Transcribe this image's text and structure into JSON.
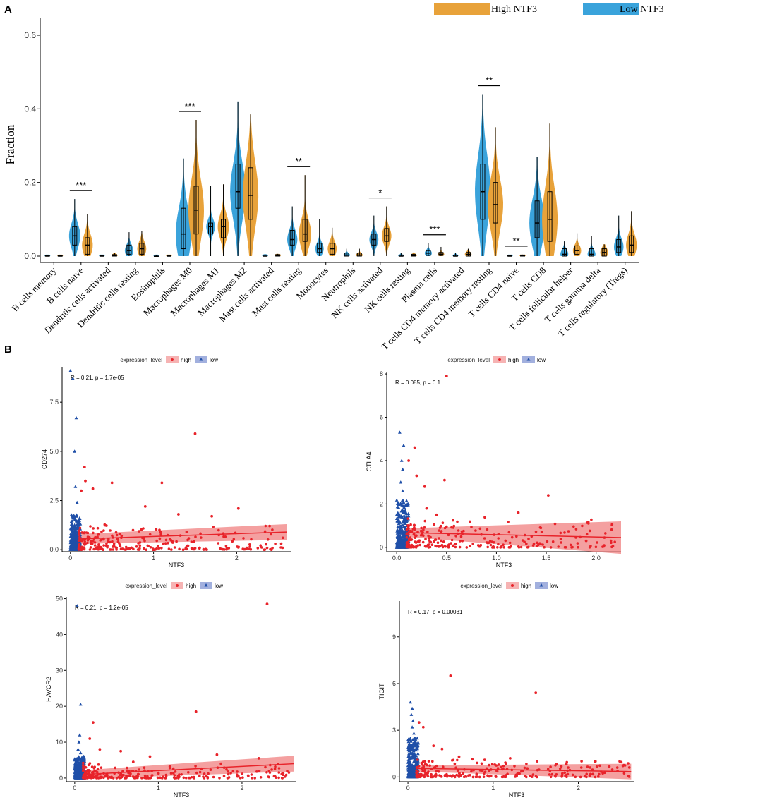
{
  "figure": {
    "panel_a_label": "A",
    "panel_b_label": "B"
  },
  "colors": {
    "high_violin": "#E8A23A",
    "low_violin": "#3AA3DB",
    "high_point": "#E8232A",
    "low_point": "#1F4FA8",
    "ci_band": "#F08080"
  },
  "chart_data": [
    {
      "type": "violin",
      "ylabel": "Fraction",
      "ylim": [
        0,
        0.65
      ],
      "yticks": [
        0.0,
        0.2,
        0.4,
        0.6
      ],
      "ytick_labels": [
        "0.0",
        "0.2",
        "0.4",
        "0.6"
      ],
      "legend": [
        "High NTF3",
        "Low NTF3"
      ],
      "categories": [
        "B cells memory",
        "B cells naive",
        "Dendritic cells activated",
        "Dendritic cells resting",
        "Eosinophils",
        "Macrophages M0",
        "Macrophages M1",
        "Macrophages M2",
        "Mast cells activated",
        "Mast cells resting",
        "Monocytes",
        "Neutrophils",
        "NK cells activated",
        "NK cells resting",
        "Plasma cells",
        "T cells CD4 memory activated",
        "T cells CD4 memory resting",
        "T cells CD4 naive",
        "T cells CD8",
        "T cells follicular helper",
        "T cells gamma delta",
        "T cells regulatory (Tregs)"
      ],
      "significance": [
        "",
        "***",
        "",
        "",
        "",
        "***",
        "",
        "",
        "",
        "**",
        "",
        "",
        "*",
        "",
        "***",
        "",
        "**",
        "**",
        "",
        "",
        "",
        ""
      ],
      "series": [
        {
          "name": "Low NTF3",
          "q1": [
            0,
            0.03,
            0,
            0.005,
            0,
            0.02,
            0.06,
            0.13,
            0,
            0.03,
            0.01,
            0,
            0.03,
            0,
            0.002,
            0,
            0.1,
            0,
            0.05,
            0,
            0,
            0.01
          ],
          "median": [
            0,
            0.055,
            0,
            0.015,
            0,
            0.06,
            0.08,
            0.175,
            0,
            0.045,
            0.02,
            0.003,
            0.045,
            0,
            0.008,
            0,
            0.175,
            0,
            0.09,
            0.005,
            0.005,
            0.025
          ],
          "q3": [
            0.002,
            0.08,
            0.002,
            0.03,
            0,
            0.13,
            0.09,
            0.25,
            0.003,
            0.07,
            0.035,
            0.008,
            0.06,
            0.003,
            0.015,
            0.003,
            0.25,
            0.002,
            0.15,
            0.02,
            0.02,
            0.045
          ],
          "min": [
            0,
            0,
            0,
            0,
            0,
            0,
            0,
            0,
            0,
            0,
            0,
            0,
            0,
            0,
            0,
            0,
            0,
            0,
            0,
            0,
            0,
            0
          ],
          "max": [
            0.003,
            0.155,
            0.003,
            0.065,
            0.002,
            0.265,
            0.19,
            0.42,
            0.005,
            0.135,
            0.1,
            0.02,
            0.11,
            0.008,
            0.035,
            0.008,
            0.44,
            0.003,
            0.27,
            0.04,
            0.055,
            0.11
          ]
        },
        {
          "name": "High NTF3",
          "q1": [
            0,
            0.005,
            0,
            0.005,
            0,
            0.06,
            0.05,
            0.1,
            0,
            0.04,
            0.005,
            0,
            0.04,
            0,
            0.002,
            0,
            0.09,
            0,
            0.04,
            0.005,
            0,
            0.01
          ],
          "median": [
            0,
            0.03,
            0.002,
            0.02,
            0,
            0.125,
            0.08,
            0.165,
            0.002,
            0.06,
            0.02,
            0.003,
            0.055,
            0.002,
            0.005,
            0.005,
            0.14,
            0.001,
            0.1,
            0.015,
            0.01,
            0.03
          ],
          "q3": [
            0.002,
            0.05,
            0.004,
            0.035,
            0.002,
            0.19,
            0.1,
            0.24,
            0.004,
            0.1,
            0.035,
            0.008,
            0.075,
            0.005,
            0.01,
            0.01,
            0.2,
            0.003,
            0.175,
            0.028,
            0.02,
            0.055
          ],
          "min": [
            0,
            0,
            0,
            0,
            0,
            0,
            0,
            0,
            0,
            0,
            0,
            0,
            0,
            0,
            0,
            0,
            0,
            0,
            0,
            0,
            0,
            0
          ],
          "max": [
            0.003,
            0.115,
            0.008,
            0.068,
            0.003,
            0.37,
            0.195,
            0.385,
            0.006,
            0.22,
            0.077,
            0.02,
            0.135,
            0.01,
            0.025,
            0.02,
            0.35,
            0.004,
            0.36,
            0.062,
            0.032,
            0.122
          ]
        }
      ]
    },
    {
      "type": "scatter",
      "legend_title": "expression_level",
      "legend_items": [
        "high",
        "low"
      ],
      "xlabel": "NTF3",
      "ylabel": "CD274",
      "stat": "R = 0.21, p = 1.7e-05",
      "xlim": [
        -0.1,
        2.65
      ],
      "ylim": [
        -0.1,
        9.3
      ],
      "xticks": [
        0,
        1,
        2
      ],
      "xtick_labels": [
        "0",
        "1",
        "2"
      ],
      "yticks": [
        0,
        2.5,
        5,
        7.5
      ],
      "ytick_labels": [
        "0.0",
        "2.5",
        "5.0",
        "7.5"
      ],
      "fit": {
        "x0": 0.12,
        "y0": 0.55,
        "x1": 2.6,
        "y1": 0.9,
        "band0": 0.25,
        "band1": 0.4
      },
      "low_outliers": [
        [
          0.0,
          9.1
        ],
        [
          0.03,
          8.7
        ],
        [
          0.07,
          6.7
        ],
        [
          0.05,
          5.0
        ],
        [
          0.06,
          3.2
        ],
        [
          0.08,
          2.4
        ]
      ],
      "high_outliers": [
        [
          1.5,
          5.9
        ],
        [
          0.17,
          4.2
        ],
        [
          0.5,
          3.4
        ],
        [
          0.18,
          3.5
        ],
        [
          0.27,
          3.1
        ],
        [
          1.1,
          3.4
        ],
        [
          0.13,
          3.0
        ],
        [
          0.9,
          2.2
        ],
        [
          1.3,
          1.8
        ],
        [
          2.02,
          2.1
        ],
        [
          1.7,
          1.7
        ]
      ],
      "bulk": {
        "low_xmax": 0.12,
        "low_ymax": 1.8,
        "high_xmin": 0.1,
        "high_xmax": 2.6,
        "high_ymax": 1.5
      }
    },
    {
      "type": "scatter",
      "legend_title": "expression_level",
      "legend_items": [
        "high",
        "low"
      ],
      "xlabel": "NTF3",
      "ylabel": "CTLA4",
      "stat": "R = 0.085, p = 0.1",
      "xlim": [
        -0.1,
        2.25
      ],
      "ylim": [
        -0.2,
        8.1
      ],
      "xticks": [
        0,
        0.5,
        1,
        1.5,
        2
      ],
      "xtick_labels": [
        "0.0",
        "0.5",
        "1.0",
        "1.5",
        "2.0"
      ],
      "yticks": [
        0,
        2,
        4,
        6,
        8
      ],
      "ytick_labels": [
        "0",
        "2",
        "4",
        "6",
        "8"
      ],
      "fit": {
        "x0": 0.1,
        "y0": 0.68,
        "x1": 2.25,
        "y1": 0.45,
        "band0": 0.2,
        "band1": 0.75
      },
      "low_outliers": [
        [
          0.03,
          5.3
        ],
        [
          0.07,
          4.7
        ],
        [
          0.05,
          4.0
        ],
        [
          0.06,
          3.6
        ],
        [
          0.04,
          3.0
        ],
        [
          0.06,
          2.6
        ]
      ],
      "high_outliers": [
        [
          0.5,
          7.9
        ],
        [
          0.18,
          4.6
        ],
        [
          0.12,
          4.0
        ],
        [
          0.2,
          3.3
        ],
        [
          0.28,
          2.8
        ],
        [
          0.48,
          3.1
        ],
        [
          1.52,
          2.4
        ],
        [
          1.22,
          1.6
        ],
        [
          0.3,
          1.8
        ],
        [
          0.4,
          1.5
        ],
        [
          1.9,
          0.3
        ]
      ],
      "bulk": {
        "low_xmax": 0.12,
        "low_ymax": 2.2,
        "high_xmin": 0.1,
        "high_xmax": 2.2,
        "high_ymax": 1.5
      }
    },
    {
      "type": "scatter",
      "legend_title": "expression_level",
      "legend_items": [
        "high",
        "low"
      ],
      "xlabel": "NTF3",
      "ylabel": "HAVCR2",
      "stat": "R = 0.21, p = 1.2e-05",
      "xlim": [
        -0.1,
        2.65
      ],
      "ylim": [
        -1,
        50.5
      ],
      "xticks": [
        0,
        1,
        2
      ],
      "xtick_labels": [
        "0",
        "1",
        "2"
      ],
      "yticks": [
        0,
        10,
        20,
        30,
        40,
        50
      ],
      "ytick_labels": [
        "0",
        "10",
        "20",
        "30",
        "40",
        "50"
      ],
      "fit": {
        "x0": 0.1,
        "y0": 1.0,
        "x1": 2.62,
        "y1": 4.0,
        "band0": 1.2,
        "band1": 2.2
      },
      "low_outliers": [
        [
          0.03,
          48.0
        ],
        [
          0.07,
          20.5
        ],
        [
          0.06,
          12.0
        ],
        [
          0.05,
          10.0
        ],
        [
          0.04,
          8.0
        ],
        [
          0.07,
          7.0
        ]
      ],
      "high_outliers": [
        [
          2.3,
          48.5
        ],
        [
          1.45,
          18.5
        ],
        [
          0.22,
          15.5
        ],
        [
          0.18,
          11.0
        ],
        [
          0.3,
          8.0
        ],
        [
          0.55,
          7.5
        ],
        [
          0.9,
          6.0
        ],
        [
          1.7,
          6.5
        ],
        [
          2.2,
          5.5
        ],
        [
          0.7,
          4.5
        ]
      ],
      "bulk": {
        "low_xmax": 0.12,
        "low_ymax": 6.0,
        "high_xmin": 0.1,
        "high_xmax": 2.6,
        "high_ymax": 4.5
      }
    },
    {
      "type": "scatter",
      "legend_title": "expression_level",
      "legend_items": [
        "high",
        "low"
      ],
      "xlabel": "NTF3",
      "ylabel": "TIGIT",
      "stat": "R = 0.17, p = 0.00031",
      "xlim": [
        -0.1,
        2.65
      ],
      "ylim": [
        -0.3,
        11.3
      ],
      "xticks": [
        0,
        1,
        2
      ],
      "xtick_labels": [
        "0",
        "1",
        "2"
      ],
      "yticks": [
        0,
        3,
        6,
        9
      ],
      "ytick_labels": [
        "0",
        "3",
        "6",
        "9"
      ],
      "fit": {
        "x0": 0.1,
        "y0": 0.55,
        "x1": 2.62,
        "y1": 0.35,
        "band0": 0.2,
        "band1": 0.5
      },
      "low_outliers": [
        [
          0.03,
          4.8
        ],
        [
          0.05,
          4.4
        ],
        [
          0.04,
          4.0
        ],
        [
          0.06,
          3.6
        ],
        [
          0.05,
          3.2
        ],
        [
          0.07,
          2.8
        ]
      ],
      "high_outliers": [
        [
          0.5,
          6.5
        ],
        [
          1.5,
          5.4
        ],
        [
          0.18,
          3.2
        ],
        [
          0.13,
          3.5
        ],
        [
          0.3,
          2.0
        ],
        [
          0.4,
          1.8
        ],
        [
          1.2,
          1.2
        ],
        [
          2.2,
          1.0
        ],
        [
          0.9,
          1.1
        ],
        [
          0.6,
          1.3
        ]
      ],
      "bulk": {
        "low_xmax": 0.12,
        "low_ymax": 2.5,
        "high_xmin": 0.1,
        "high_xmax": 2.6,
        "high_ymax": 1.3
      }
    }
  ]
}
